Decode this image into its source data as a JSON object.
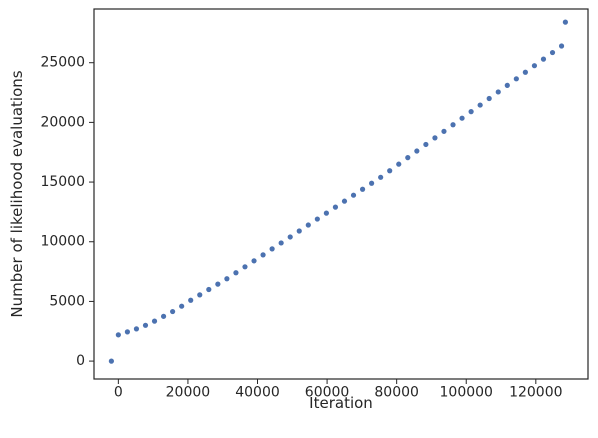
{
  "chart_data": {
    "type": "scatter",
    "title": "",
    "xlabel": "Iteration",
    "ylabel": "Number of likelihood evaluations",
    "xlim": [
      -7000,
      135000
    ],
    "ylim": [
      -1500,
      29500
    ],
    "xticks": [
      0,
      20000,
      40000,
      60000,
      80000,
      100000,
      120000
    ],
    "yticks": [
      0,
      5000,
      10000,
      15000,
      20000,
      25000
    ],
    "xtick_labels": [
      "0",
      "20000",
      "40000",
      "60000",
      "80000",
      "100000",
      "120000"
    ],
    "ytick_labels": [
      "0",
      "5000",
      "10000",
      "15000",
      "20000",
      "25000"
    ],
    "grid": false,
    "marker_color": "#4c72b0",
    "series": [
      {
        "x": [
          -2000,
          0,
          2600,
          5200,
          7800,
          10400,
          13000,
          15600,
          18200,
          20800,
          23400,
          26000,
          28600,
          31200,
          33800,
          36400,
          39000,
          41600,
          44200,
          46800,
          49400,
          52000,
          54600,
          57200,
          59800,
          62400,
          65000,
          67600,
          70200,
          72800,
          75400,
          78000,
          80600,
          83200,
          85800,
          88400,
          91000,
          93600,
          96200,
          98800,
          101400,
          104000,
          106600,
          109200,
          111800,
          114400,
          117000,
          119600,
          122200,
          124800,
          127400,
          128500
        ],
        "y": [
          0,
          2200,
          2450,
          2700,
          3000,
          3350,
          3750,
          4150,
          4600,
          5100,
          5550,
          6000,
          6450,
          6900,
          7400,
          7900,
          8400,
          8900,
          9400,
          9900,
          10400,
          10900,
          11400,
          11900,
          12400,
          12900,
          13400,
          13900,
          14400,
          14900,
          15400,
          15950,
          16500,
          17050,
          17600,
          18150,
          18700,
          19250,
          19800,
          20350,
          20900,
          21450,
          22000,
          22550,
          23100,
          23650,
          24200,
          24750,
          25300,
          25850,
          26400,
          28400
        ]
      }
    ]
  }
}
